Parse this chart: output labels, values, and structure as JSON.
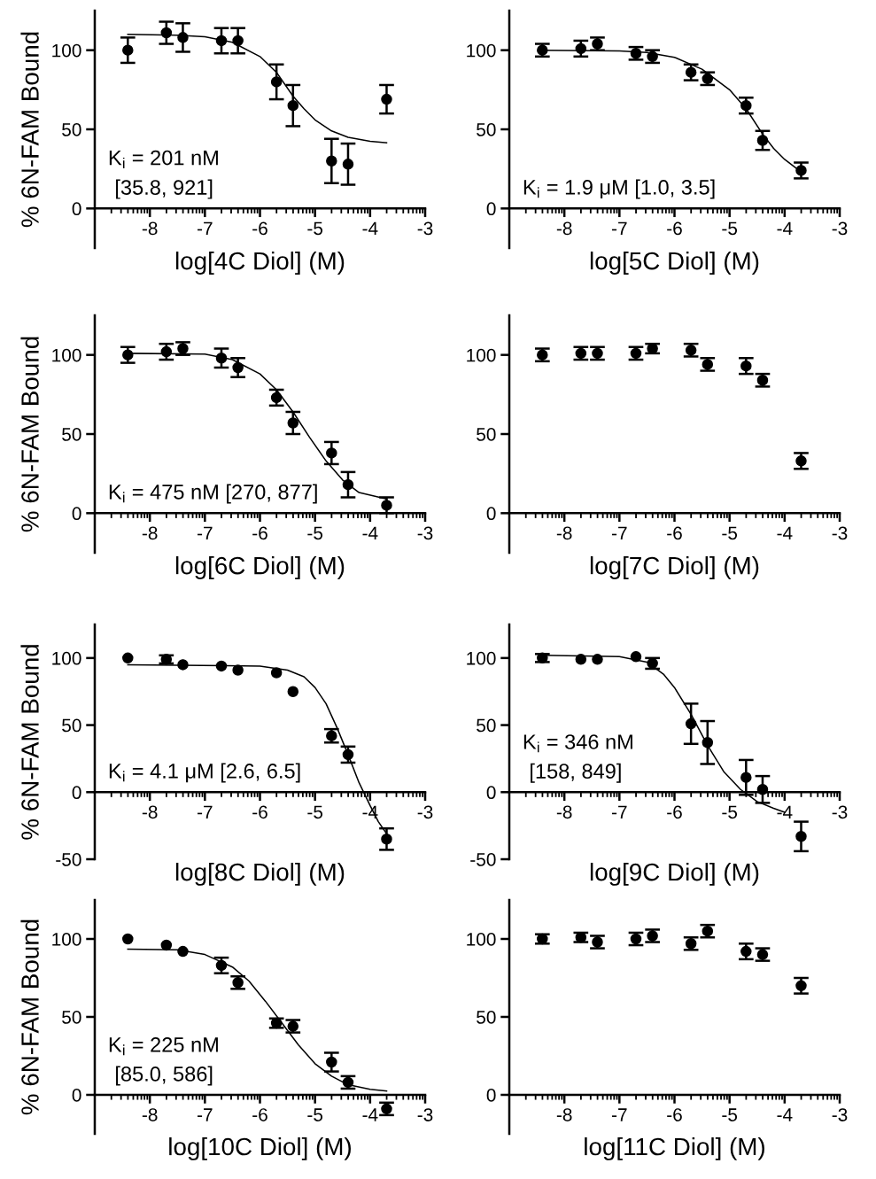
{
  "chart_data": [
    {
      "type": "scatter",
      "xlabel": "log[4C Diol] (M)",
      "ylabel": "% 6N-FAM Bound",
      "x": [
        -8.4,
        -7.7,
        -7.4,
        -6.7,
        -6.4,
        -5.7,
        -5.4,
        -4.7,
        -4.4,
        -3.7
      ],
      "xlim": [
        -9,
        -3
      ],
      "xticks": [
        -8,
        -7,
        -6,
        -5,
        -4,
        -3
      ],
      "ylim": [
        -25,
        125
      ],
      "yticks": [
        0,
        50,
        100
      ],
      "marker": "circle",
      "grid": false,
      "legend": false,
      "annotations": [
        "K$_{i}$ = 201 nM",
        "[35.8, 921]"
      ],
      "series": [
        {
          "color": "#000000",
          "values": [
            100,
            111,
            108,
            106,
            106,
            80,
            65,
            30,
            28,
            69
          ],
          "errors": [
            8,
            7,
            9,
            8,
            8,
            11,
            13,
            14,
            13,
            9
          ]
        },
        {
          "type": "line",
          "marker": "none",
          "color": "#000000",
          "x": [
            -8.4,
            -7.5,
            -7,
            -6.5,
            -6,
            -5.7,
            -5.4,
            -5.2,
            -5,
            -4.7,
            -4.4,
            -4,
            -3.7
          ],
          "values": [
            110,
            109.5,
            108.5,
            105,
            96,
            86,
            71,
            63,
            56,
            49,
            45,
            42.5,
            41.5
          ]
        }
      ]
    },
    {
      "type": "scatter",
      "xlabel": "log[5C Diol] (M)",
      "x": [
        -8.4,
        -7.7,
        -7.4,
        -6.7,
        -6.4,
        -5.7,
        -5.4,
        -4.7,
        -4.4,
        -3.7
      ],
      "xlim": [
        -9,
        -3
      ],
      "xticks": [
        -8,
        -7,
        -6,
        -5,
        -4,
        -3
      ],
      "ylim": [
        -25,
        125
      ],
      "yticks": [
        0,
        50,
        100
      ],
      "marker": "circle",
      "grid": false,
      "legend": false,
      "annotations": [
        "K$_{i}$ = 1.9 μM [1.0, 3.5]"
      ],
      "series": [
        {
          "color": "#000000",
          "values": [
            100,
            101,
            104,
            98,
            96,
            86,
            82,
            65,
            43,
            24
          ],
          "errors": [
            4,
            5,
            4,
            4,
            4,
            5,
            4,
            5,
            6,
            5
          ]
        },
        {
          "type": "line",
          "marker": "none",
          "color": "#000000",
          "x": [
            -8.4,
            -7,
            -6.5,
            -6,
            -5.5,
            -5,
            -4.7,
            -4.4,
            -4.2,
            -4,
            -3.7
          ],
          "values": [
            100,
            99.5,
            98.5,
            95.5,
            88,
            75,
            63,
            47,
            38,
            31,
            23
          ]
        }
      ]
    },
    {
      "type": "scatter",
      "xlabel": "log[6C Diol] (M)",
      "ylabel": "% 6N-FAM Bound",
      "x": [
        -8.4,
        -7.7,
        -7.4,
        -6.7,
        -6.4,
        -5.7,
        -5.4,
        -4.7,
        -4.4,
        -3.7
      ],
      "xlim": [
        -9,
        -3
      ],
      "xticks": [
        -8,
        -7,
        -6,
        -5,
        -4,
        -3
      ],
      "ylim": [
        -25,
        125
      ],
      "yticks": [
        0,
        50,
        100
      ],
      "marker": "circle",
      "grid": false,
      "legend": false,
      "annotations": [
        "K$_{i}$ = 475 nM [270, 877]"
      ],
      "series": [
        {
          "color": "#000000",
          "values": [
            100,
            102,
            104,
            98,
            92,
            73,
            57,
            38,
            18,
            5
          ],
          "errors": [
            5,
            5,
            4,
            6,
            6,
            5,
            7,
            7,
            8,
            5
          ]
        },
        {
          "type": "line",
          "marker": "none",
          "color": "#000000",
          "x": [
            -8.4,
            -7,
            -6.5,
            -6,
            -5.7,
            -5.4,
            -5.1,
            -4.8,
            -4.5,
            -4.2,
            -3.7
          ],
          "values": [
            101,
            100.5,
            97,
            88,
            78,
            64,
            48,
            33,
            21,
            13,
            9
          ]
        }
      ]
    },
    {
      "type": "scatter",
      "xlabel": "log[7C Diol] (M)",
      "x": [
        -8.4,
        -7.7,
        -7.4,
        -6.7,
        -6.4,
        -5.7,
        -5.4,
        -4.7,
        -4.4,
        -3.7
      ],
      "xlim": [
        -9,
        -3
      ],
      "xticks": [
        -8,
        -7,
        -6,
        -5,
        -4,
        -3
      ],
      "ylim": [
        -25,
        125
      ],
      "yticks": [
        0,
        50,
        100
      ],
      "marker": "circle",
      "grid": false,
      "legend": false,
      "series": [
        {
          "color": "#000000",
          "values": [
            100,
            101,
            101,
            101,
            104,
            103,
            94,
            93,
            84,
            33
          ],
          "errors": [
            4,
            4,
            4,
            4,
            3,
            4,
            4,
            5,
            4,
            5
          ]
        }
      ]
    },
    {
      "type": "scatter",
      "xlabel": "log[8C Diol] (M)",
      "ylabel": "% 6N-FAM Bound",
      "x": [
        -8.4,
        -7.7,
        -7.4,
        -6.7,
        -6.4,
        -5.7,
        -5.4,
        -4.7,
        -4.4,
        -3.7
      ],
      "xlim": [
        -9,
        -3
      ],
      "xticks": [
        -8,
        -7,
        -6,
        -5,
        -4,
        -3
      ],
      "ylim": [
        -50,
        125
      ],
      "yticks": [
        -50,
        0,
        50,
        100
      ],
      "marker": "circle",
      "grid": false,
      "legend": false,
      "annotations": [
        "K$_{i}$ = 4.1 μM [2.6, 6.5]"
      ],
      "series": [
        {
          "color": "#000000",
          "values": [
            100,
            99,
            95,
            94,
            91,
            89,
            75,
            42,
            28,
            -35
          ],
          "errors": [
            null,
            3,
            null,
            null,
            null,
            null,
            null,
            5,
            6,
            8
          ]
        },
        {
          "type": "line",
          "marker": "none",
          "color": "#000000",
          "x": [
            -8.4,
            -6,
            -5.5,
            -5.2,
            -5,
            -4.8,
            -4.6,
            -4.4,
            -4.2,
            -4,
            -3.85,
            -3.7
          ],
          "values": [
            95,
            94,
            91,
            86,
            78,
            66,
            48,
            28,
            7,
            -10,
            -22,
            -31
          ]
        }
      ]
    },
    {
      "type": "scatter",
      "xlabel": "log[9C Diol] (M)",
      "x": [
        -8.4,
        -7.7,
        -7.4,
        -6.7,
        -6.4,
        -5.7,
        -5.4,
        -4.7,
        -4.4,
        -3.7
      ],
      "xlim": [
        -9,
        -3
      ],
      "xticks": [
        -8,
        -7,
        -6,
        -5,
        -4,
        -3
      ],
      "ylim": [
        -50,
        125
      ],
      "yticks": [
        -50,
        0,
        50,
        100
      ],
      "marker": "circle",
      "grid": false,
      "legend": false,
      "annotations": [
        "K$_{i}$ = 346 nM",
        "[158, 849]"
      ],
      "series": [
        {
          "color": "#000000",
          "values": [
            100,
            99,
            99,
            101,
            96,
            51,
            37,
            11,
            2,
            -33
          ],
          "errors": [
            3,
            null,
            null,
            null,
            4,
            15,
            16,
            13,
            10,
            11
          ]
        },
        {
          "type": "line",
          "marker": "none",
          "color": "#000000",
          "x": [
            -8.4,
            -7,
            -6.5,
            -6.2,
            -6,
            -5.7,
            -5.4,
            -5.1,
            -4.8,
            -4.5,
            -4.2,
            -4
          ],
          "values": [
            102,
            101,
            97,
            88,
            78,
            58,
            35,
            15,
            2,
            -7,
            -12,
            -15
          ]
        }
      ]
    },
    {
      "type": "scatter",
      "xlabel": "log[10C Diol] (M)",
      "ylabel": "% 6N-FAM Bound",
      "x": [
        -8.4,
        -7.7,
        -7.4,
        -6.7,
        -6.4,
        -5.7,
        -5.4,
        -4.7,
        -4.4,
        -3.7
      ],
      "xlim": [
        -9,
        -3
      ],
      "xticks": [
        -8,
        -7,
        -6,
        -5,
        -4,
        -3
      ],
      "ylim": [
        -25,
        125
      ],
      "yticks": [
        0,
        50,
        100
      ],
      "marker": "circle",
      "grid": false,
      "legend": false,
      "annotations": [
        "K$_{i}$ = 225 nM",
        "[85.0, 586]"
      ],
      "series": [
        {
          "color": "#000000",
          "values": [
            100,
            96,
            92,
            83,
            72,
            46,
            44,
            21,
            8,
            -9
          ],
          "errors": [
            null,
            null,
            null,
            5,
            4,
            3,
            4,
            6,
            4,
            4
          ]
        },
        {
          "type": "line",
          "marker": "none",
          "color": "#000000",
          "x": [
            -8.4,
            -7.5,
            -7,
            -6.5,
            -6.2,
            -5.9,
            -5.6,
            -5.3,
            -5,
            -4.7,
            -4.4,
            -4,
            -3.7
          ],
          "values": [
            93.5,
            93,
            90,
            82,
            73,
            60,
            46,
            32,
            20,
            12,
            6.5,
            3.5,
            2.5
          ]
        }
      ]
    },
    {
      "type": "scatter",
      "xlabel": "log[11C Diol] (M)",
      "x": [
        -8.4,
        -7.7,
        -7.4,
        -6.7,
        -6.4,
        -5.7,
        -5.4,
        -4.7,
        -4.4,
        -3.7
      ],
      "xlim": [
        -9,
        -3
      ],
      "xticks": [
        -8,
        -7,
        -6,
        -5,
        -4,
        -3
      ],
      "ylim": [
        -25,
        125
      ],
      "yticks": [
        0,
        50,
        100
      ],
      "marker": "circle",
      "grid": false,
      "legend": false,
      "series": [
        {
          "color": "#000000",
          "values": [
            100,
            101,
            98,
            100,
            102,
            97,
            105,
            92,
            90,
            70
          ],
          "errors": [
            3,
            3,
            4,
            4,
            4,
            4,
            4,
            5,
            4,
            5
          ]
        }
      ]
    }
  ]
}
